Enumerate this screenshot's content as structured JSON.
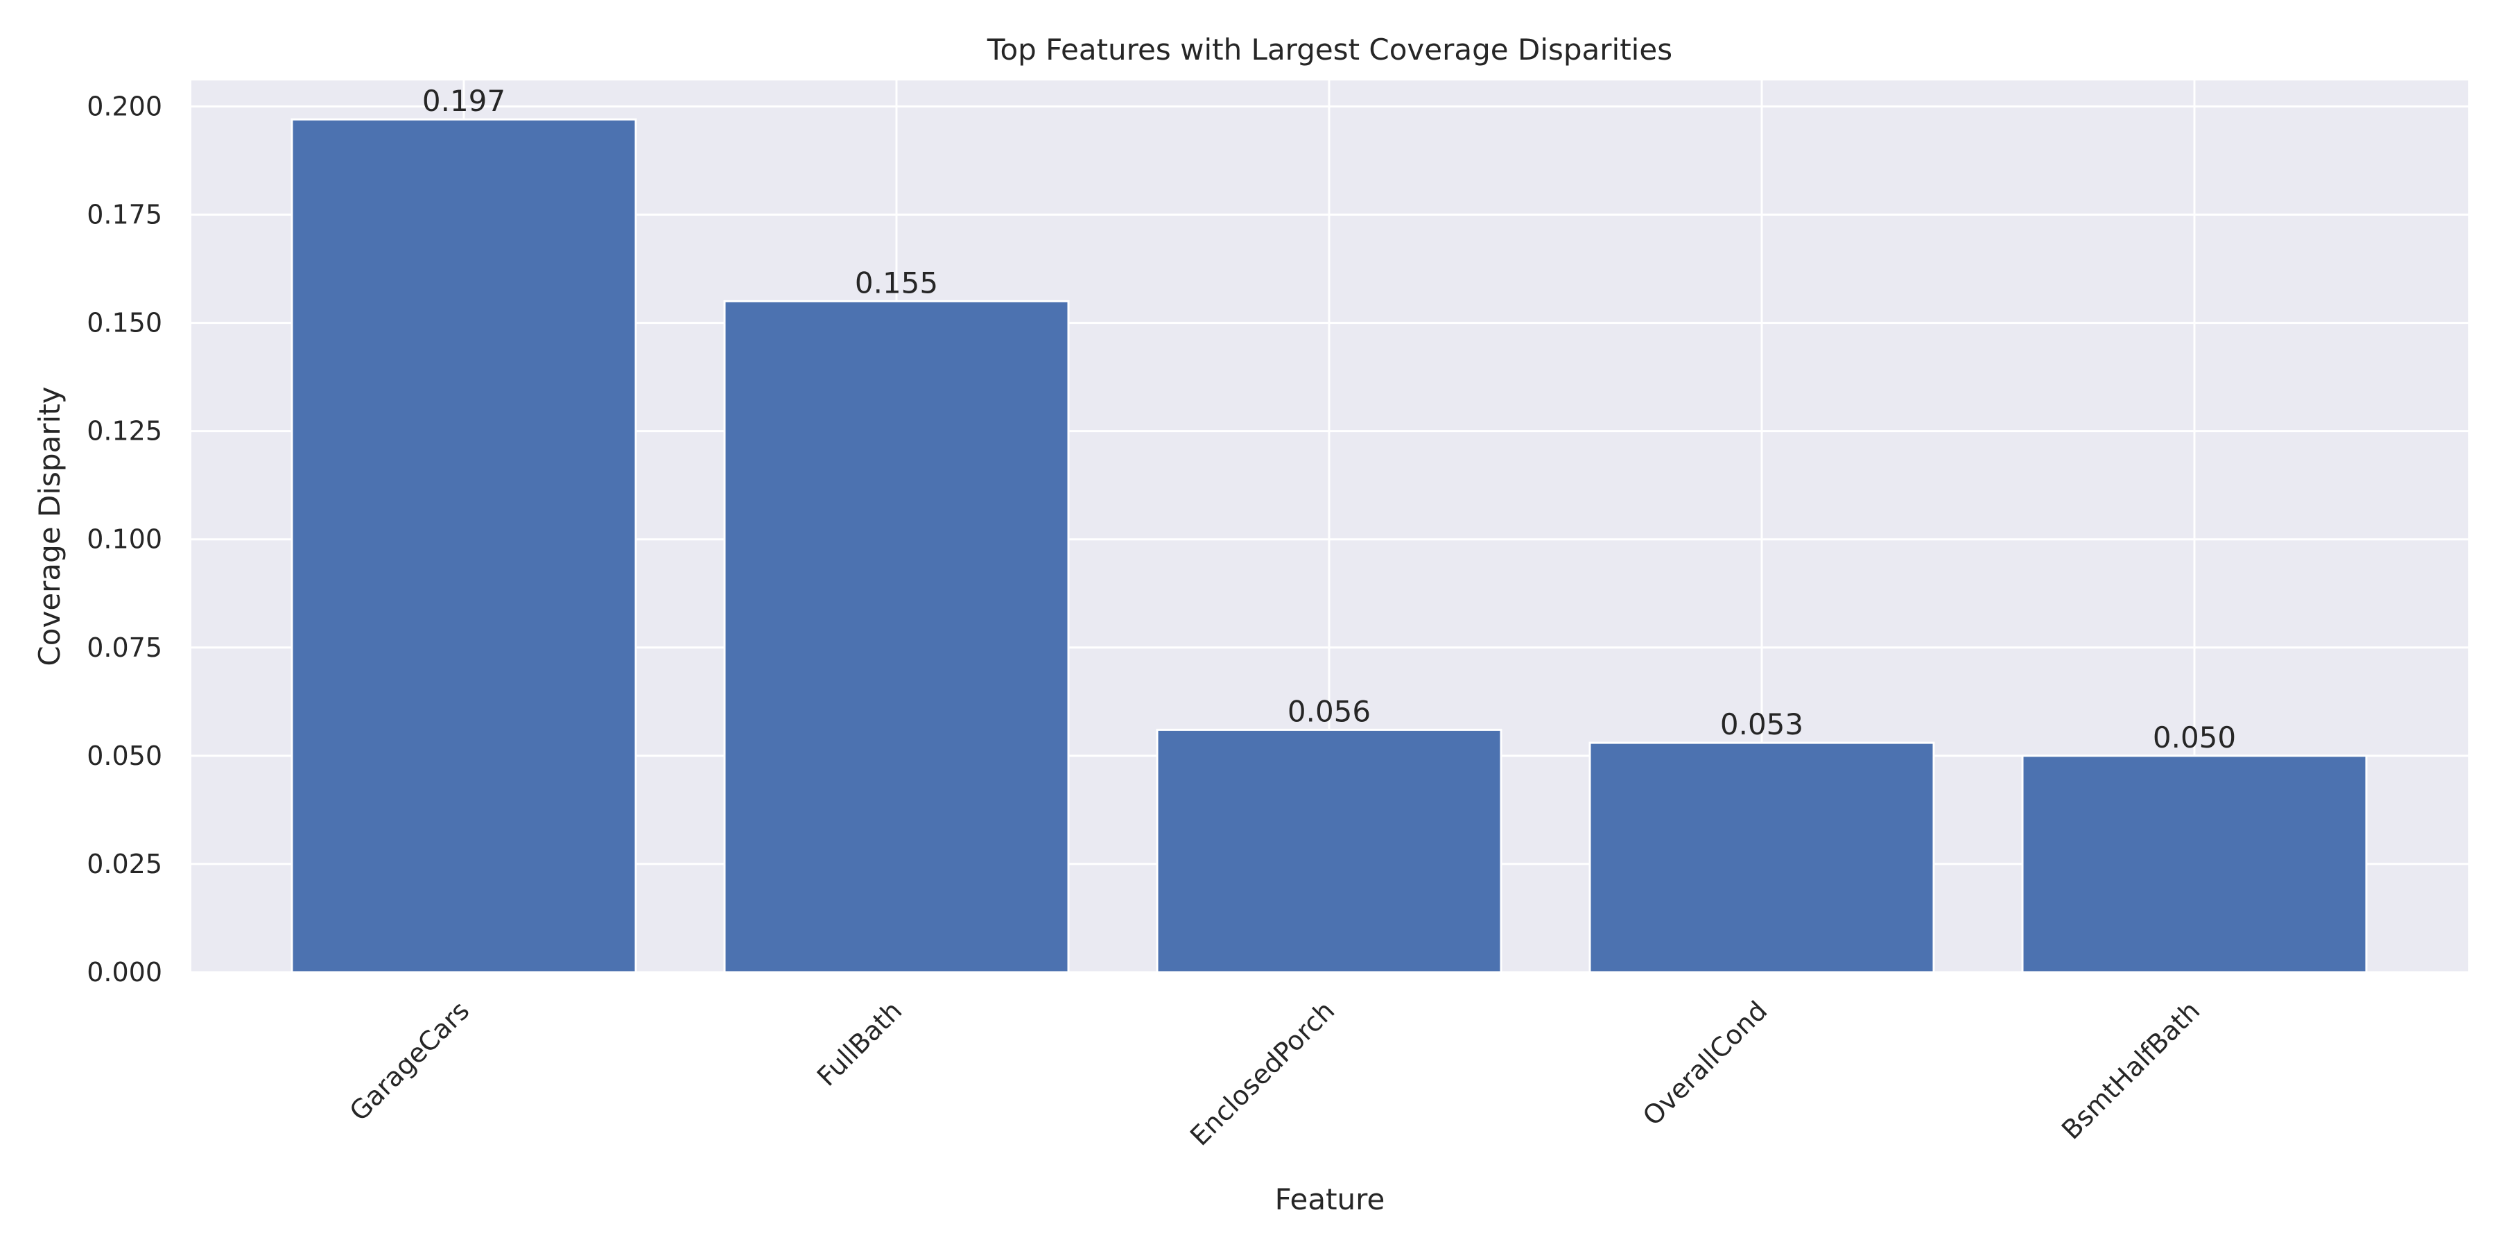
{
  "chart_data": {
    "type": "bar",
    "title": "Top Features with Largest Coverage Disparities",
    "xlabel": "Feature",
    "ylabel": "Coverage Disparity",
    "categories": [
      "GarageCars",
      "FullBath",
      "EnclosedPorch",
      "OverallCond",
      "BsmtHalfBath"
    ],
    "values": [
      0.197,
      0.155,
      0.056,
      0.053,
      0.05
    ],
    "data_labels": [
      "0.197",
      "0.155",
      "0.056",
      "0.053",
      "0.050"
    ],
    "ylim": [
      0,
      0.206
    ],
    "yticks": [
      0,
      0.025,
      0.05,
      0.075,
      0.1,
      0.125,
      0.15,
      0.175,
      0.2
    ],
    "ytick_labels": [
      "0.000",
      "0.025",
      "0.050",
      "0.075",
      "0.100",
      "0.125",
      "0.150",
      "0.175",
      "0.200"
    ],
    "grid": true,
    "legend": "none",
    "colors": {
      "bar": "#4C72B0",
      "plot_background": "#EAEAF2",
      "grid": "#FFFFFF",
      "text": "#262626"
    }
  }
}
